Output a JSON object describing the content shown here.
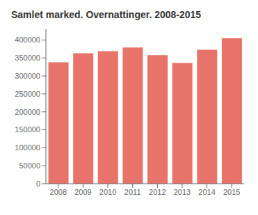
{
  "chart_data": {
    "type": "bar",
    "title": "Samlet marked. Overnattinger. 2008-2015",
    "categories": [
      "2008",
      "2009",
      "2010",
      "2011",
      "2012",
      "2013",
      "2014",
      "2015"
    ],
    "values": [
      338000,
      363000,
      369000,
      379000,
      358000,
      336000,
      373000,
      405000
    ],
    "color": "#e8736a",
    "ylim": [
      0,
      430000
    ],
    "yticks": [
      0,
      50000,
      100000,
      150000,
      200000,
      250000,
      300000,
      350000,
      400000
    ],
    "grid": false
  }
}
